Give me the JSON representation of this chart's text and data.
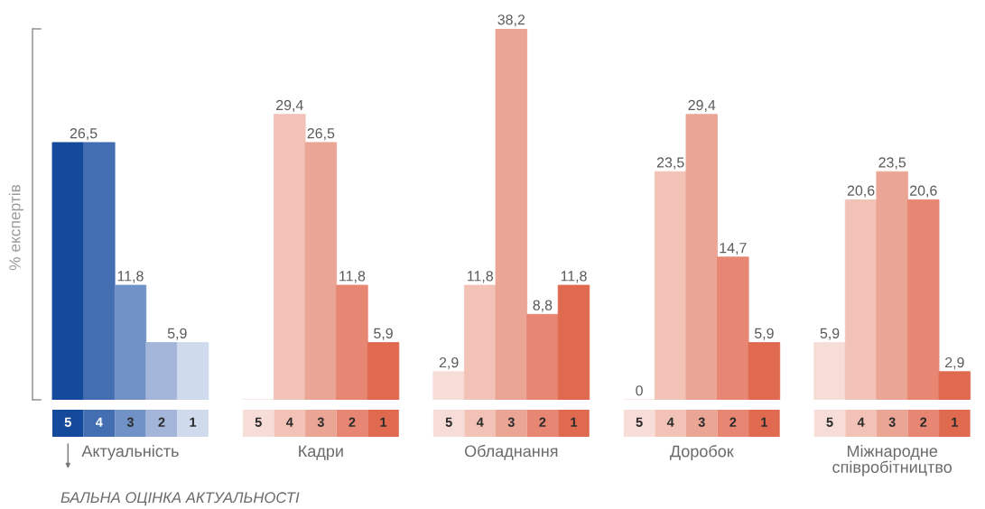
{
  "chart_data": {
    "type": "bar",
    "ylabel": "% експертів",
    "legend_title": "БАЛЬНА ОЦІНКА АКТУАЛЬНОСТІ",
    "categories": [
      "Актуальність",
      "Кадри",
      "Обладнання",
      "Доробок",
      "Міжнародне\nспівробітництво"
    ],
    "series": [
      {
        "name": "5",
        "colors": [
          "#15499c",
          "#f7ddd8",
          "#f7ddd8",
          "#f7ddd8",
          "#f7ddd8"
        ],
        "values": [
          26.5,
          0,
          2.9,
          0,
          5.9
        ],
        "value_labels": [
          null,
          null,
          "2,9",
          "0",
          "5,9"
        ]
      },
      {
        "name": "4",
        "colors": [
          "#436eb2",
          "#f2c2b7",
          "#f2c2b7",
          "#f2c2b7",
          "#f2c2b7"
        ],
        "values": [
          26.5,
          29.4,
          11.8,
          23.5,
          20.6
        ],
        "value_labels": [
          "26,5",
          "29,4",
          "11,8",
          "23,5",
          "20,6"
        ]
      },
      {
        "name": "3",
        "colors": [
          "#7192c6",
          "#eba595",
          "#eba595",
          "#eba595",
          "#eba595"
        ],
        "values": [
          11.8,
          26.5,
          38.2,
          29.4,
          23.5
        ],
        "value_labels": [
          "11,8",
          "26,5",
          "38,2",
          "29,4",
          "23,5"
        ]
      },
      {
        "name": "2",
        "colors": [
          "#a3b6da",
          "#e78673",
          "#e78673",
          "#e78673",
          "#e78673"
        ],
        "values": [
          5.9,
          11.8,
          8.8,
          14.7,
          20.6
        ],
        "value_labels": [
          "5,9",
          "11,8",
          "8,8",
          "14,7",
          "20,6"
        ]
      },
      {
        "name": "1",
        "colors": [
          "#cfdbec",
          "#e06a50",
          "#e06a50",
          "#e06a50",
          "#e06a50"
        ],
        "values": [
          5.9,
          5.9,
          11.8,
          5.9,
          2.9
        ],
        "value_labels": [
          null,
          "5,9",
          "11,8",
          "5,9",
          "2,9"
        ]
      }
    ],
    "ylim": [
      0,
      38.2
    ],
    "yticks": [
      {
        "value": 0,
        "label": null
      },
      {
        "value": 38.2,
        "label": null
      }
    ],
    "tick_labels": "x",
    "legend": "bottom"
  }
}
